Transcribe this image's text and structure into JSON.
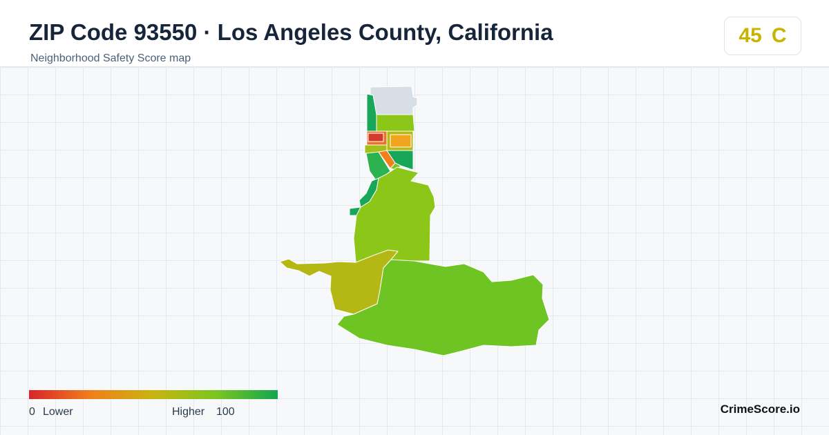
{
  "header": {
    "title": "ZIP Code 93550 · Los Angeles County, California",
    "subtitle": "Neighborhood Safety Score map"
  },
  "score": {
    "value": "45",
    "grade": "C"
  },
  "legend": {
    "min": "0",
    "low_label": "Lower",
    "high_label": "Higher",
    "max": "100"
  },
  "brand": "CrimeScore.io"
}
